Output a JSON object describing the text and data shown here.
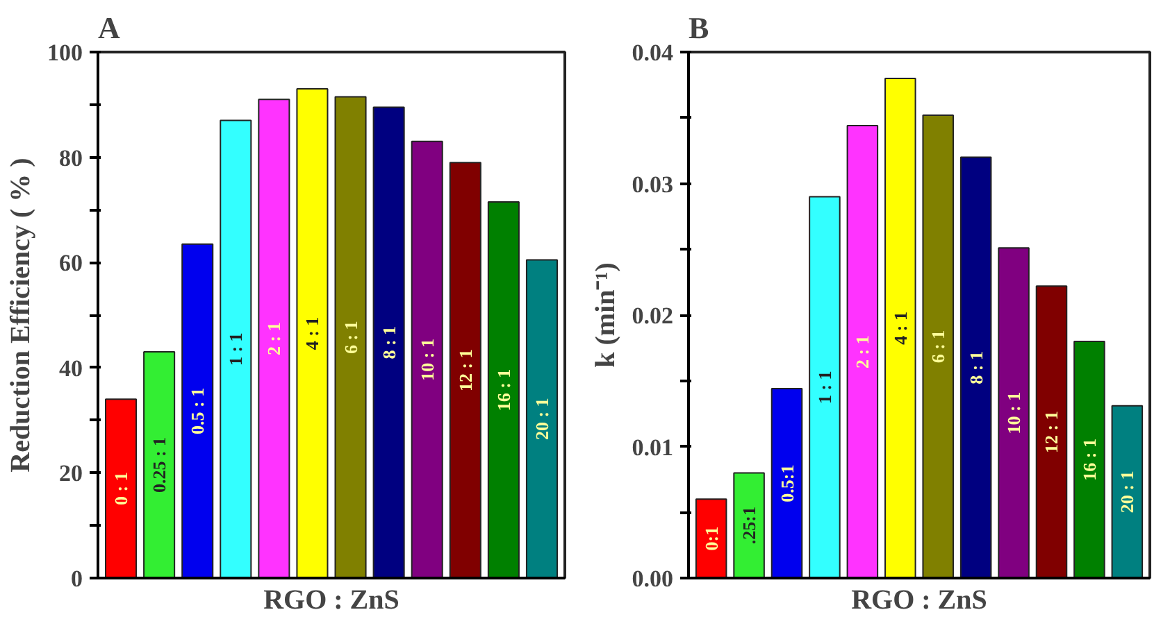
{
  "chart_data": [
    {
      "type": "bar",
      "title": "A",
      "xlabel": "RGO : ZnS",
      "ylabel": "Reduction Efficiency ( % )",
      "categories": [
        "0 : 1",
        "0.25 : 1",
        "0.5 : 1",
        "1 : 1",
        "2 : 1",
        "4 : 1",
        "6 : 1",
        "8 : 1",
        "10 : 1",
        "12 : 1",
        "16 : 1",
        "20 : 1"
      ],
      "values": [
        34,
        43,
        63.5,
        87,
        91,
        93,
        91.5,
        89.5,
        83,
        79,
        71.5,
        60.5
      ],
      "colors": [
        "#ff0000",
        "#33ee33",
        "#0000ee",
        "#33ffff",
        "#ff33ff",
        "#ffff00",
        "#808000",
        "#000080",
        "#800080",
        "#800000",
        "#008000",
        "#008080"
      ],
      "ylim": [
        0,
        100
      ],
      "yticks": [
        0,
        {
          "value": 10,
          "label": null
        },
        20,
        {
          "value": 30,
          "label": null
        },
        40,
        {
          "value": 50,
          "label": null
        },
        60,
        {
          "value": 70,
          "label": null
        },
        80,
        {
          "value": 90,
          "label": null
        },
        100
      ],
      "tick_labels": "y"
    },
    {
      "type": "bar",
      "title": "B",
      "xlabel": "RGO : ZnS",
      "ylabel": "k (min⁻¹)",
      "categories": [
        "0:1",
        ".25:1",
        "0.5:1",
        "1 : 1",
        "2 : 1",
        "4 : 1",
        "6 : 1",
        "8 : 1",
        "10 : 1",
        "12 : 1",
        "16 : 1",
        "20 : 1"
      ],
      "values": [
        0.006,
        0.008,
        0.0144,
        0.029,
        0.0344,
        0.038,
        0.0352,
        0.032,
        0.0251,
        0.0222,
        0.018,
        0.0131
      ],
      "colors": [
        "#ff0000",
        "#33ee33",
        "#0000ee",
        "#33ffff",
        "#ff33ff",
        "#ffff00",
        "#808000",
        "#000080",
        "#800080",
        "#800000",
        "#008000",
        "#008080"
      ],
      "ylim": [
        0,
        0.04
      ],
      "yticks": [
        {
          "value": 0,
          "label": "0.00"
        },
        {
          "value": 0.005,
          "label": null
        },
        0.01,
        {
          "value": 0.015,
          "label": null
        },
        0.02,
        {
          "value": 0.025,
          "label": null
        },
        0.03,
        {
          "value": 0.035,
          "label": null
        },
        0.04
      ],
      "tick_labels": "y"
    }
  ]
}
